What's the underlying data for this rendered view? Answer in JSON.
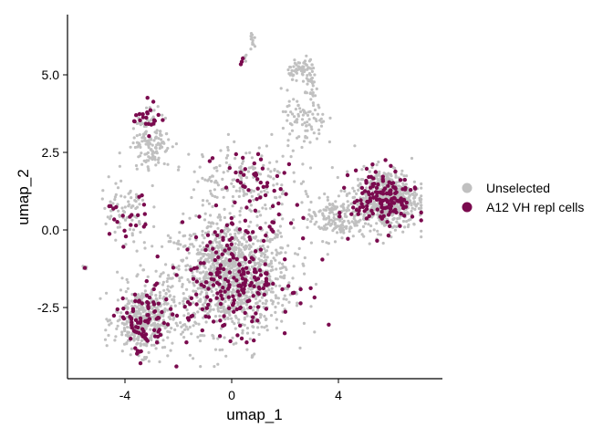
{
  "chart_data": {
    "type": "scatter",
    "title": "",
    "xlabel": "umap_1",
    "ylabel": "umap_2",
    "xlim": [
      -6.1,
      7.6
    ],
    "ylim": [
      -4.9,
      7.0
    ],
    "xticks": [
      -4,
      0,
      4
    ],
    "yticks": [
      -2.5,
      0.0,
      2.5,
      5.0
    ],
    "xtick_labels": [
      "-4",
      "0",
      "4"
    ],
    "ytick_labels": [
      "-2.5",
      "0.0",
      "2.5",
      "5.0"
    ],
    "grid": false,
    "legend_position": "right",
    "series": [
      {
        "name": "Unselected",
        "color": "#c0c0c0",
        "regions": [
          {
            "cx": 0.0,
            "cy": -1.5,
            "sx": 1.9,
            "sy": 1.5,
            "n": 1150
          },
          {
            "cx": -3.3,
            "cy": -2.9,
            "sx": 0.9,
            "sy": 0.9,
            "n": 430
          },
          {
            "cx": 5.8,
            "cy": 1.0,
            "sx": 1.0,
            "sy": 0.8,
            "n": 620
          },
          {
            "cx": 3.8,
            "cy": 0.4,
            "sx": 0.8,
            "sy": 0.6,
            "n": 160
          },
          {
            "cx": -3.0,
            "cy": 2.9,
            "sx": 0.6,
            "sy": 0.8,
            "n": 140
          },
          {
            "cx": 0.3,
            "cy": 1.6,
            "sx": 1.6,
            "sy": 1.0,
            "n": 160
          },
          {
            "cx": 2.7,
            "cy": 3.5,
            "sx": 0.7,
            "sy": 0.8,
            "n": 90
          },
          {
            "cx": 2.6,
            "cy": 5.2,
            "sx": 0.4,
            "sy": 0.25,
            "n": 55
          },
          {
            "cx": 3.0,
            "cy": 4.7,
            "sx": 0.2,
            "sy": 0.5,
            "n": 35
          },
          {
            "cx": 0.8,
            "cy": 6.1,
            "sx": 0.08,
            "sy": 0.25,
            "n": 12
          },
          {
            "cx": 0.5,
            "cy": 5.5,
            "sx": 0.08,
            "sy": 0.15,
            "n": 6
          },
          {
            "cx": -4.0,
            "cy": 0.5,
            "sx": 0.8,
            "sy": 1.0,
            "n": 80
          },
          {
            "cx": -5.5,
            "cy": -1.2,
            "sx": 0.08,
            "sy": 0.05,
            "n": 5
          },
          {
            "cx": 0.8,
            "cy": -4.1,
            "sx": 0.06,
            "sy": 0.15,
            "n": 4
          }
        ]
      },
      {
        "name": "A12 VH repl cells",
        "color": "#7a0a4e",
        "regions": [
          {
            "cx": 0.0,
            "cy": -1.5,
            "sx": 1.9,
            "sy": 1.5,
            "n": 230
          },
          {
            "cx": -3.3,
            "cy": -3.0,
            "sx": 0.8,
            "sy": 0.9,
            "n": 85
          },
          {
            "cx": 5.7,
            "cy": 1.0,
            "sx": 1.0,
            "sy": 0.8,
            "n": 150
          },
          {
            "cx": -3.2,
            "cy": 3.6,
            "sx": 0.4,
            "sy": 0.4,
            "n": 22
          },
          {
            "cx": 0.8,
            "cy": 1.5,
            "sx": 1.2,
            "sy": 1.0,
            "n": 45
          },
          {
            "cx": -4.0,
            "cy": 0.2,
            "sx": 0.7,
            "sy": 0.8,
            "n": 22
          },
          {
            "cx": 0.4,
            "cy": 5.5,
            "sx": 0.05,
            "sy": 0.15,
            "n": 3
          },
          {
            "cx": -5.5,
            "cy": -1.2,
            "sx": 0.05,
            "sy": 0.03,
            "n": 1
          }
        ]
      }
    ]
  }
}
